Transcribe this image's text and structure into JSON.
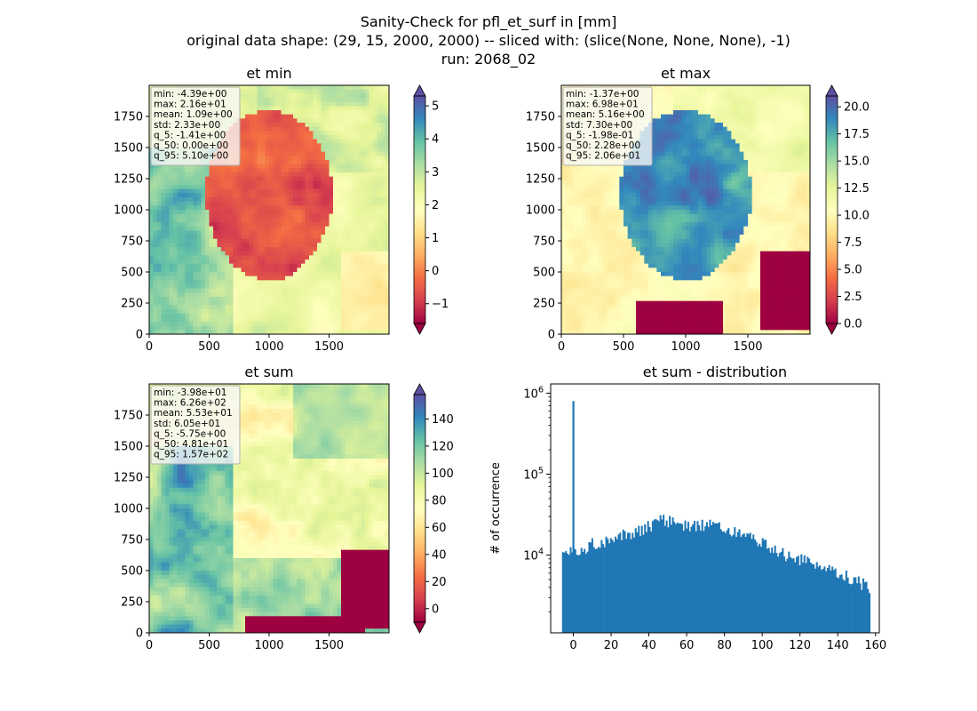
{
  "figure": {
    "title_lines": [
      "Sanity-Check for pfl_et_surf in [mm]",
      "original data shape: (29, 15, 2000, 2000) -- sliced with: (slice(None, None, None), -1)",
      "run: 2068_02"
    ]
  },
  "colors": {
    "spectral": [
      "#9e0142",
      "#d53e4f",
      "#f46d43",
      "#fdae61",
      "#fee08b",
      "#ffffbf",
      "#e6f598",
      "#abdda4",
      "#66c2a5",
      "#3288bd",
      "#5e4fa2"
    ],
    "hist_bar": "#1f77b4",
    "stats_box_bg": "#f7f7f7",
    "stats_box_border": "#b0b0b0"
  },
  "chart_data": [
    {
      "type": "heatmap",
      "title": "et min",
      "xticks": [
        "0",
        "500",
        "1000",
        "1500"
      ],
      "yticks": [
        "0",
        "250",
        "500",
        "750",
        "1000",
        "1250",
        "1500",
        "1750"
      ],
      "xlim": [
        0,
        2000
      ],
      "ylim": [
        0,
        2000
      ],
      "colorbar": {
        "vmin": -1.6,
        "vmax": 5.3,
        "ticks": [
          -1,
          0,
          1,
          2,
          3,
          4,
          5
        ],
        "tick_labels": [
          "−1",
          "0",
          "1",
          "2",
          "3",
          "4",
          "5"
        ],
        "extend": "both"
      },
      "stats": [
        "min: -4.39e+00",
        "max: 2.16e+01",
        "mean: 1.09e+00",
        "std: 2.33e+00",
        "q_5: -1.41e+00",
        "q_50: 0.00e+00",
        "q_95: 5.10e+00"
      ]
    },
    {
      "type": "heatmap",
      "title": "et max",
      "xticks": [
        "0",
        "500",
        "1000",
        "1500"
      ],
      "yticks": [
        "0",
        "250",
        "500",
        "750",
        "1000",
        "1250",
        "1500",
        "1750"
      ],
      "xlim": [
        0,
        2000
      ],
      "ylim": [
        0,
        2000
      ],
      "colorbar": {
        "vmin": 0,
        "vmax": 21,
        "ticks": [
          0,
          2.5,
          5,
          7.5,
          10,
          12.5,
          15,
          17.5,
          20
        ],
        "tick_labels": [
          "0.0",
          "2.5",
          "5.0",
          "7.5",
          "10.0",
          "12.5",
          "15.0",
          "17.5",
          "20.0"
        ],
        "extend": "both"
      },
      "stats": [
        "min: -1.37e+00",
        "max: 6.98e+01",
        "mean: 5.16e+00",
        "std: 7.30e+00",
        "q_5: -1.98e-01",
        "q_50: 2.28e+00",
        "q_95: 2.06e+01"
      ]
    },
    {
      "type": "heatmap",
      "title": "et sum",
      "xticks": [
        "0",
        "500",
        "1000",
        "1500"
      ],
      "yticks": [
        "0",
        "250",
        "500",
        "750",
        "1000",
        "1250",
        "1500",
        "1750"
      ],
      "xlim": [
        0,
        2000
      ],
      "ylim": [
        0,
        2000
      ],
      "colorbar": {
        "vmin": -10,
        "vmax": 158,
        "ticks": [
          0,
          20,
          40,
          60,
          80,
          100,
          120,
          140
        ],
        "tick_labels": [
          "0",
          "20",
          "40",
          "60",
          "80",
          "100",
          "120",
          "140"
        ],
        "extend": "both"
      },
      "stats": [
        "min: -3.98e+01",
        "max: 6.26e+02",
        "mean: 5.53e+01",
        "std: 6.05e+01",
        "q_5: -5.75e+00",
        "q_50: 4.81e+01",
        "q_95: 1.57e+02"
      ]
    },
    {
      "type": "bar",
      "title": "et sum - distribution",
      "ylabel": "# of occurrence",
      "yscale": "log",
      "xlim": [
        -12,
        162
      ],
      "ylim": [
        1100,
        1300000
      ],
      "xticks": [
        0,
        20,
        40,
        60,
        80,
        100,
        120,
        140,
        160
      ],
      "ytick_labels": [
        {
          "value": 10000,
          "base": "10",
          "exp": "4"
        },
        {
          "value": 100000,
          "base": "10",
          "exp": "5"
        },
        {
          "value": 1000000,
          "base": "10",
          "exp": "6"
        }
      ],
      "spike": {
        "x": 0,
        "value": 800000
      },
      "profile": [
        [
          -6,
          11000
        ],
        [
          0,
          10500
        ],
        [
          10,
          14000
        ],
        [
          20,
          16000
        ],
        [
          30,
          19000
        ],
        [
          40,
          23000
        ],
        [
          46,
          28000
        ],
        [
          55,
          24000
        ],
        [
          65,
          23000
        ],
        [
          75,
          25000
        ],
        [
          80,
          22000
        ],
        [
          90,
          18000
        ],
        [
          100,
          14000
        ],
        [
          110,
          10500
        ],
        [
          120,
          9000
        ],
        [
          130,
          7000
        ],
        [
          140,
          6000
        ],
        [
          150,
          4800
        ],
        [
          157,
          4000
        ]
      ]
    }
  ]
}
